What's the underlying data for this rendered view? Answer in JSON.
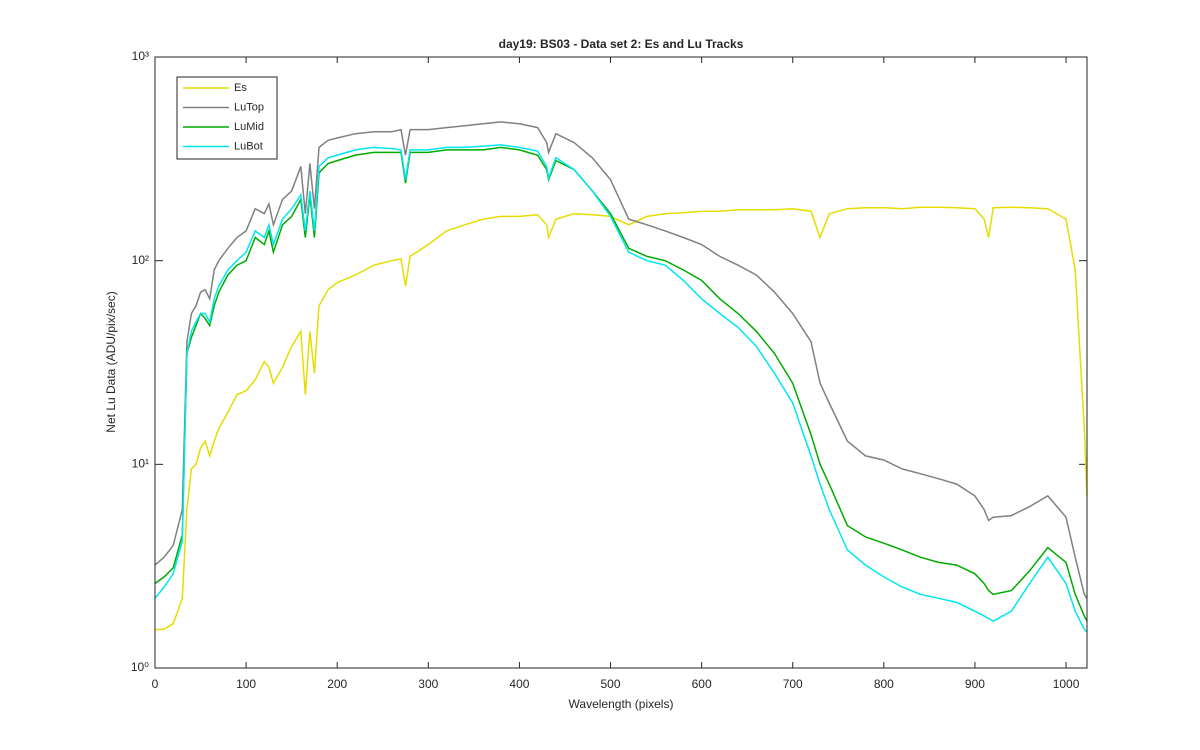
{
  "chart_data": {
    "type": "line",
    "title": "day19: BS03 - Data set 2: Es and Lu Tracks",
    "x_label": "Wavelength (pixels)",
    "y_label": "Net Lu Data (ADU/pix/sec)",
    "x": [
      0,
      10,
      20,
      30,
      35,
      40,
      45,
      50,
      55,
      60,
      65,
      70,
      80,
      90,
      100,
      110,
      120,
      125,
      130,
      140,
      150,
      160,
      165,
      170,
      175,
      180,
      190,
      200,
      220,
      240,
      260,
      270,
      275,
      280,
      300,
      320,
      340,
      360,
      380,
      400,
      420,
      430,
      432,
      440,
      460,
      480,
      500,
      520,
      540,
      560,
      580,
      600,
      620,
      640,
      660,
      680,
      700,
      720,
      730,
      740,
      760,
      780,
      800,
      820,
      840,
      860,
      880,
      900,
      910,
      915,
      920,
      940,
      960,
      980,
      1000,
      1010,
      1020,
      1023
    ],
    "series": [
      {
        "name": "Es",
        "color": "#e6dc00",
        "values": [
          1.54,
          1.55,
          1.65,
          2.2,
          6,
          9.5,
          10,
          12,
          13,
          11,
          13,
          15,
          18,
          22,
          23,
          26,
          32,
          30,
          25,
          30,
          38,
          45,
          22,
          45,
          28,
          60,
          72,
          78,
          85,
          95,
          100,
          102,
          75,
          105,
          120,
          140,
          150,
          160,
          165,
          165,
          168,
          150,
          130,
          160,
          170,
          168,
          165,
          150,
          165,
          170,
          172,
          175,
          175,
          178,
          178,
          178,
          180,
          175,
          130,
          170,
          180,
          182,
          182,
          180,
          183,
          183,
          182,
          180,
          160,
          130,
          182,
          183,
          182,
          180,
          160,
          90,
          15,
          7
        ]
      },
      {
        "name": "LuTop",
        "color": "#808080",
        "values": [
          3.2,
          3.5,
          4,
          6,
          40,
          55,
          60,
          70,
          72,
          65,
          90,
          100,
          115,
          130,
          140,
          180,
          170,
          190,
          150,
          200,
          220,
          290,
          170,
          300,
          180,
          360,
          390,
          400,
          420,
          430,
          430,
          440,
          330,
          440,
          440,
          450,
          460,
          470,
          480,
          470,
          450,
          380,
          340,
          420,
          380,
          320,
          250,
          160,
          150,
          140,
          130,
          120,
          105,
          95,
          85,
          70,
          55,
          40,
          25,
          20,
          13,
          11,
          10.5,
          9.5,
          9,
          8.5,
          8,
          7,
          6,
          5.3,
          5.5,
          5.6,
          6.2,
          7,
          5.5,
          3.5,
          2.3,
          2.2
        ]
      },
      {
        "name": "LuMid",
        "color": "#00aa00",
        "values": [
          2.6,
          2.8,
          3.1,
          4.5,
          35,
          42,
          48,
          55,
          52,
          48,
          60,
          70,
          85,
          95,
          100,
          130,
          120,
          140,
          110,
          150,
          165,
          200,
          130,
          210,
          130,
          270,
          300,
          310,
          330,
          340,
          340,
          340,
          240,
          340,
          340,
          350,
          350,
          350,
          360,
          350,
          330,
          280,
          250,
          310,
          280,
          220,
          170,
          115,
          105,
          100,
          90,
          80,
          65,
          55,
          45,
          35,
          25,
          14,
          10,
          8,
          5,
          4.4,
          4.1,
          3.8,
          3.5,
          3.3,
          3.2,
          2.9,
          2.6,
          2.4,
          2.3,
          2.4,
          3,
          3.9,
          3.3,
          2.3,
          1.8,
          1.7
        ]
      },
      {
        "name": "LuBot",
        "color": "#00e6f0",
        "values": [
          2.2,
          2.5,
          2.9,
          4.2,
          35,
          45,
          50,
          55,
          55,
          50,
          65,
          75,
          90,
          100,
          110,
          140,
          130,
          150,
          120,
          160,
          180,
          210,
          140,
          220,
          140,
          290,
          320,
          330,
          350,
          360,
          355,
          350,
          250,
          350,
          350,
          360,
          360,
          365,
          370,
          360,
          345,
          290,
          255,
          320,
          280,
          220,
          165,
          110,
          100,
          95,
          80,
          65,
          55,
          47,
          38,
          28,
          20,
          11,
          8,
          6,
          3.8,
          3.2,
          2.8,
          2.5,
          2.3,
          2.2,
          2.1,
          1.9,
          1.8,
          1.75,
          1.7,
          1.9,
          2.6,
          3.5,
          2.6,
          1.9,
          1.55,
          1.5
        ]
      }
    ],
    "xlim": [
      0,
      1023
    ],
    "ylim": [
      1,
      1000
    ],
    "y_scale": "log",
    "xticks": [
      0,
      100,
      200,
      300,
      400,
      500,
      600,
      700,
      800,
      900,
      1000
    ],
    "yticks": [
      {
        "value": 1,
        "label": "10⁰"
      },
      {
        "value": 10,
        "label": "10¹"
      },
      {
        "value": 100,
        "label": "10²"
      },
      {
        "value": 1000,
        "label": "10³"
      }
    ],
    "grid": false,
    "legend": "upper-left"
  }
}
